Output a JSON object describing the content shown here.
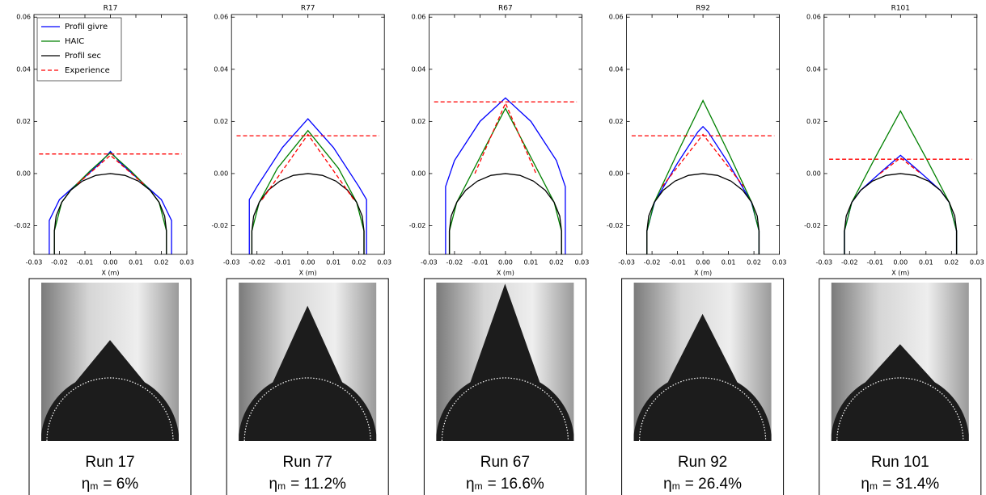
{
  "chart_data": [
    {
      "type": "line",
      "title": "R17",
      "xlabel": "X (m)",
      "legend": "upper left",
      "xlim": [
        -0.03,
        0.03
      ],
      "ylim": [
        -0.031,
        0.061
      ],
      "xticks": [
        -0.03,
        -0.02,
        -0.01,
        {
          "value": 0,
          "label": "0.00"
        },
        0.01,
        0.02,
        0.03
      ],
      "yticks": [
        -0.02,
        {
          "value": 0,
          "label": "0.00"
        },
        0.02,
        0.04,
        0.06
      ],
      "series": [
        {
          "name": "Profil givre",
          "color": "#0000ff",
          "dash": false,
          "x": [
            -0.024,
            -0.024,
            -0.02,
            -0.012,
            -0.004,
            0,
            0.004,
            0.012,
            0.02,
            0.024,
            0.024
          ],
          "values": [
            -0.031,
            -0.018,
            -0.01,
            -0.003,
            0.004,
            0.0085,
            0.004,
            -0.003,
            -0.01,
            -0.018,
            -0.031
          ]
        },
        {
          "name": "HAIC",
          "color": "#008000",
          "dash": false,
          "x": [
            -0.022,
            -0.022,
            -0.0191,
            -0.0156,
            -0.008,
            0,
            0.008,
            0.0156,
            0.0191,
            0.022,
            0.022
          ],
          "values": [
            -0.031,
            -0.022,
            -0.011,
            -0.0064,
            0.001,
            0.008,
            0.001,
            -0.0064,
            -0.011,
            -0.022,
            -0.031
          ]
        },
        {
          "name": "Profil sec",
          "color": "#000000",
          "dash": false,
          "x": [
            -0.022,
            -0.022,
            -0.0213,
            -0.0191,
            -0.0156,
            -0.011,
            -0.0057,
            0,
            0.0057,
            0.011,
            0.0156,
            0.0191,
            0.0213,
            0.022,
            0.022
          ],
          "values": [
            -0.031,
            -0.022,
            -0.0163,
            -0.011,
            -0.0064,
            -0.0029,
            -0.0007,
            0,
            -0.0007,
            -0.0029,
            -0.0064,
            -0.011,
            -0.0163,
            -0.022,
            -0.031
          ]
        },
        {
          "name": "Experience",
          "color": "#ff0000",
          "dash": true,
          "x": [
            -0.028,
            0.028,
            null,
            -0.013,
            0,
            0.013
          ],
          "values": [
            0.0075,
            0.0075,
            null,
            -0.004,
            0.007,
            -0.004
          ]
        }
      ]
    },
    {
      "type": "line",
      "title": "R77",
      "xlabel": "X (m)",
      "xlim": [
        -0.03,
        0.03
      ],
      "ylim": [
        -0.031,
        0.061
      ],
      "xticks": [
        -0.03,
        -0.02,
        -0.01,
        {
          "value": 0,
          "label": "0.00"
        },
        0.01,
        0.02,
        0.03
      ],
      "yticks": [
        -0.02,
        {
          "value": 0,
          "label": "0.00"
        },
        0.02,
        0.04,
        0.06
      ],
      "series": [
        {
          "name": "Profil givre",
          "color": "#0000ff",
          "dash": false,
          "x": [
            -0.023,
            -0.023,
            -0.02,
            -0.01,
            0,
            0.01,
            0.02,
            0.023,
            0.023
          ],
          "values": [
            -0.031,
            -0.01,
            -0.005,
            0.01,
            0.021,
            0.01,
            -0.005,
            -0.01,
            -0.031
          ]
        },
        {
          "name": "HAIC",
          "color": "#008000",
          "dash": false,
          "x": [
            -0.022,
            -0.022,
            -0.0191,
            -0.012,
            0,
            0.012,
            0.0191,
            0.022,
            0.022
          ],
          "values": [
            -0.031,
            -0.022,
            -0.011,
            0.002,
            0.0165,
            0.002,
            -0.011,
            -0.022,
            -0.031
          ]
        },
        {
          "name": "Profil sec",
          "color": "#000000",
          "dash": false,
          "x": [
            -0.022,
            -0.022,
            -0.0213,
            -0.0191,
            -0.0156,
            -0.011,
            -0.0057,
            0,
            0.0057,
            0.011,
            0.0156,
            0.0191,
            0.0213,
            0.022,
            0.022
          ],
          "values": [
            -0.031,
            -0.022,
            -0.0163,
            -0.011,
            -0.0064,
            -0.0029,
            -0.0007,
            0,
            -0.0007,
            -0.0029,
            -0.0064,
            -0.011,
            -0.0163,
            -0.022,
            -0.031
          ]
        },
        {
          "name": "Experience",
          "color": "#ff0000",
          "dash": true,
          "x": [
            -0.028,
            0.028,
            null,
            -0.018,
            0,
            0.018
          ],
          "values": [
            0.0145,
            0.0145,
            null,
            -0.01,
            0.015,
            -0.01
          ]
        }
      ]
    },
    {
      "type": "line",
      "title": "R67",
      "xlabel": "X (m)",
      "xlim": [
        -0.03,
        0.03
      ],
      "ylim": [
        -0.031,
        0.061
      ],
      "xticks": [
        -0.03,
        -0.02,
        -0.01,
        {
          "value": 0,
          "label": "0.00"
        },
        0.01,
        0.02,
        0.03
      ],
      "yticks": [
        -0.02,
        {
          "value": 0,
          "label": "0.00"
        },
        0.02,
        0.04,
        0.06
      ],
      "series": [
        {
          "name": "Profil givre",
          "color": "#0000ff",
          "dash": false,
          "x": [
            -0.0235,
            -0.0235,
            -0.02,
            -0.01,
            0,
            0.01,
            0.02,
            0.0235,
            0.0235
          ],
          "values": [
            -0.031,
            -0.005,
            0.005,
            0.02,
            0.029,
            0.02,
            0.005,
            -0.005,
            -0.031
          ]
        },
        {
          "name": "HAIC",
          "color": "#008000",
          "dash": false,
          "x": [
            -0.022,
            -0.022,
            -0.0191,
            -0.008,
            0,
            0.008,
            0.0191,
            0.022,
            0.022
          ],
          "values": [
            -0.031,
            -0.022,
            -0.011,
            0.01,
            0.025,
            0.01,
            -0.011,
            -0.022,
            -0.031
          ]
        },
        {
          "name": "Profil sec",
          "color": "#000000",
          "dash": false,
          "x": [
            -0.022,
            -0.022,
            -0.0213,
            -0.0191,
            -0.0156,
            -0.011,
            -0.0057,
            0,
            0.0057,
            0.011,
            0.0156,
            0.0191,
            0.0213,
            0.022,
            0.022
          ],
          "values": [
            -0.031,
            -0.022,
            -0.0163,
            -0.011,
            -0.0064,
            -0.0029,
            -0.0007,
            0,
            -0.0007,
            -0.0029,
            -0.0064,
            -0.011,
            -0.0163,
            -0.022,
            -0.031
          ]
        },
        {
          "name": "Experience",
          "color": "#ff0000",
          "dash": true,
          "x": [
            -0.028,
            0.028,
            null,
            -0.012,
            0,
            0.012
          ],
          "values": [
            0.0275,
            0.0275,
            null,
            0,
            0.027,
            0
          ]
        }
      ]
    },
    {
      "type": "line",
      "title": "R92",
      "xlabel": "X (m)",
      "xlim": [
        -0.03,
        0.03
      ],
      "ylim": [
        -0.031,
        0.061
      ],
      "xticks": [
        -0.03,
        -0.02,
        -0.01,
        {
          "value": 0,
          "label": "0.00"
        },
        0.01,
        0.02,
        0.03
      ],
      "yticks": [
        -0.02,
        {
          "value": 0,
          "label": "0.00"
        },
        0.02,
        0.04,
        0.06
      ],
      "series": [
        {
          "name": "Profil givre",
          "color": "#0000ff",
          "dash": false,
          "x": [
            -0.022,
            -0.022,
            -0.019,
            -0.01,
            -0.002,
            0,
            0.002,
            0.01,
            0.019,
            0.022,
            0.022
          ],
          "values": [
            -0.031,
            -0.022,
            -0.011,
            0.004,
            0.016,
            0.018,
            0.016,
            0.004,
            -0.011,
            -0.022,
            -0.031
          ]
        },
        {
          "name": "HAIC",
          "color": "#008000",
          "dash": false,
          "x": [
            -0.022,
            -0.022,
            -0.0191,
            -0.01,
            0,
            0.01,
            0.0191,
            0.022,
            0.022
          ],
          "values": [
            -0.031,
            -0.022,
            -0.011,
            0.008,
            0.028,
            0.008,
            -0.011,
            -0.022,
            -0.031
          ]
        },
        {
          "name": "Profil sec",
          "color": "#000000",
          "dash": false,
          "x": [
            -0.022,
            -0.022,
            -0.0213,
            -0.0191,
            -0.0156,
            -0.011,
            -0.0057,
            0,
            0.0057,
            0.011,
            0.0156,
            0.0191,
            0.0213,
            0.022,
            0.022
          ],
          "values": [
            -0.031,
            -0.022,
            -0.0163,
            -0.011,
            -0.0064,
            -0.0029,
            -0.0007,
            0,
            -0.0007,
            -0.0029,
            -0.0064,
            -0.011,
            -0.0163,
            -0.022,
            -0.031
          ]
        },
        {
          "name": "Experience",
          "color": "#ff0000",
          "dash": true,
          "x": [
            -0.028,
            0.028,
            null,
            -0.016,
            0,
            0.016
          ],
          "values": [
            0.0145,
            0.0145,
            null,
            -0.005,
            0.015,
            -0.005
          ]
        }
      ]
    },
    {
      "type": "line",
      "title": "R101",
      "xlabel": "X (m)",
      "xlim": [
        -0.03,
        0.03
      ],
      "ylim": [
        -0.031,
        0.061
      ],
      "xticks": [
        -0.03,
        -0.02,
        -0.01,
        {
          "value": 0,
          "label": "0.00"
        },
        0.01,
        0.02,
        0.03
      ],
      "yticks": [
        -0.02,
        {
          "value": 0,
          "label": "0.00"
        },
        0.02,
        0.04,
        0.06
      ],
      "series": [
        {
          "name": "Profil givre",
          "color": "#0000ff",
          "dash": false,
          "x": [
            -0.022,
            -0.022,
            -0.0191,
            -0.0156,
            -0.006,
            0,
            0.006,
            0.0156,
            0.0191,
            0.022,
            0.022
          ],
          "values": [
            -0.031,
            -0.022,
            -0.011,
            -0.0064,
            0.002,
            0.007,
            0.002,
            -0.0064,
            -0.011,
            -0.022,
            -0.031
          ]
        },
        {
          "name": "HAIC",
          "color": "#008000",
          "dash": false,
          "x": [
            -0.022,
            -0.022,
            -0.0191,
            -0.01,
            0,
            0.01,
            0.0191,
            0.022,
            0.022
          ],
          "values": [
            -0.031,
            -0.022,
            -0.011,
            0.006,
            0.024,
            0.006,
            -0.011,
            -0.022,
            -0.031
          ]
        },
        {
          "name": "Profil sec",
          "color": "#000000",
          "dash": false,
          "x": [
            -0.022,
            -0.022,
            -0.0213,
            -0.0191,
            -0.0156,
            -0.011,
            -0.0057,
            0,
            0.0057,
            0.011,
            0.0156,
            0.0191,
            0.0213,
            0.022,
            0.022
          ],
          "values": [
            -0.031,
            -0.022,
            -0.0163,
            -0.011,
            -0.0064,
            -0.0029,
            -0.0007,
            0,
            -0.0007,
            -0.0029,
            -0.0064,
            -0.011,
            -0.0163,
            -0.022,
            -0.031
          ]
        },
        {
          "name": "Experience",
          "color": "#ff0000",
          "dash": true,
          "x": [
            -0.028,
            0.028,
            null,
            -0.008,
            0,
            0.008
          ],
          "values": [
            0.0055,
            0.0055,
            null,
            0,
            0.006,
            0
          ]
        }
      ]
    }
  ],
  "photos": [
    {
      "run": "Run 17",
      "eta": "η",
      "sub": "m",
      "rate": "= 6%"
    },
    {
      "run": "Run 77",
      "eta": "η",
      "sub": "m",
      "rate": "= 11.2%"
    },
    {
      "run": "Run 67",
      "eta": "η",
      "sub": "m",
      "rate": "= 16.6%"
    },
    {
      "run": "Run 92",
      "eta": "η",
      "sub": "m",
      "rate": "= 26.4%"
    },
    {
      "run": "Run 101",
      "eta": "η",
      "sub": "m",
      "rate": "= 31.4%"
    }
  ]
}
